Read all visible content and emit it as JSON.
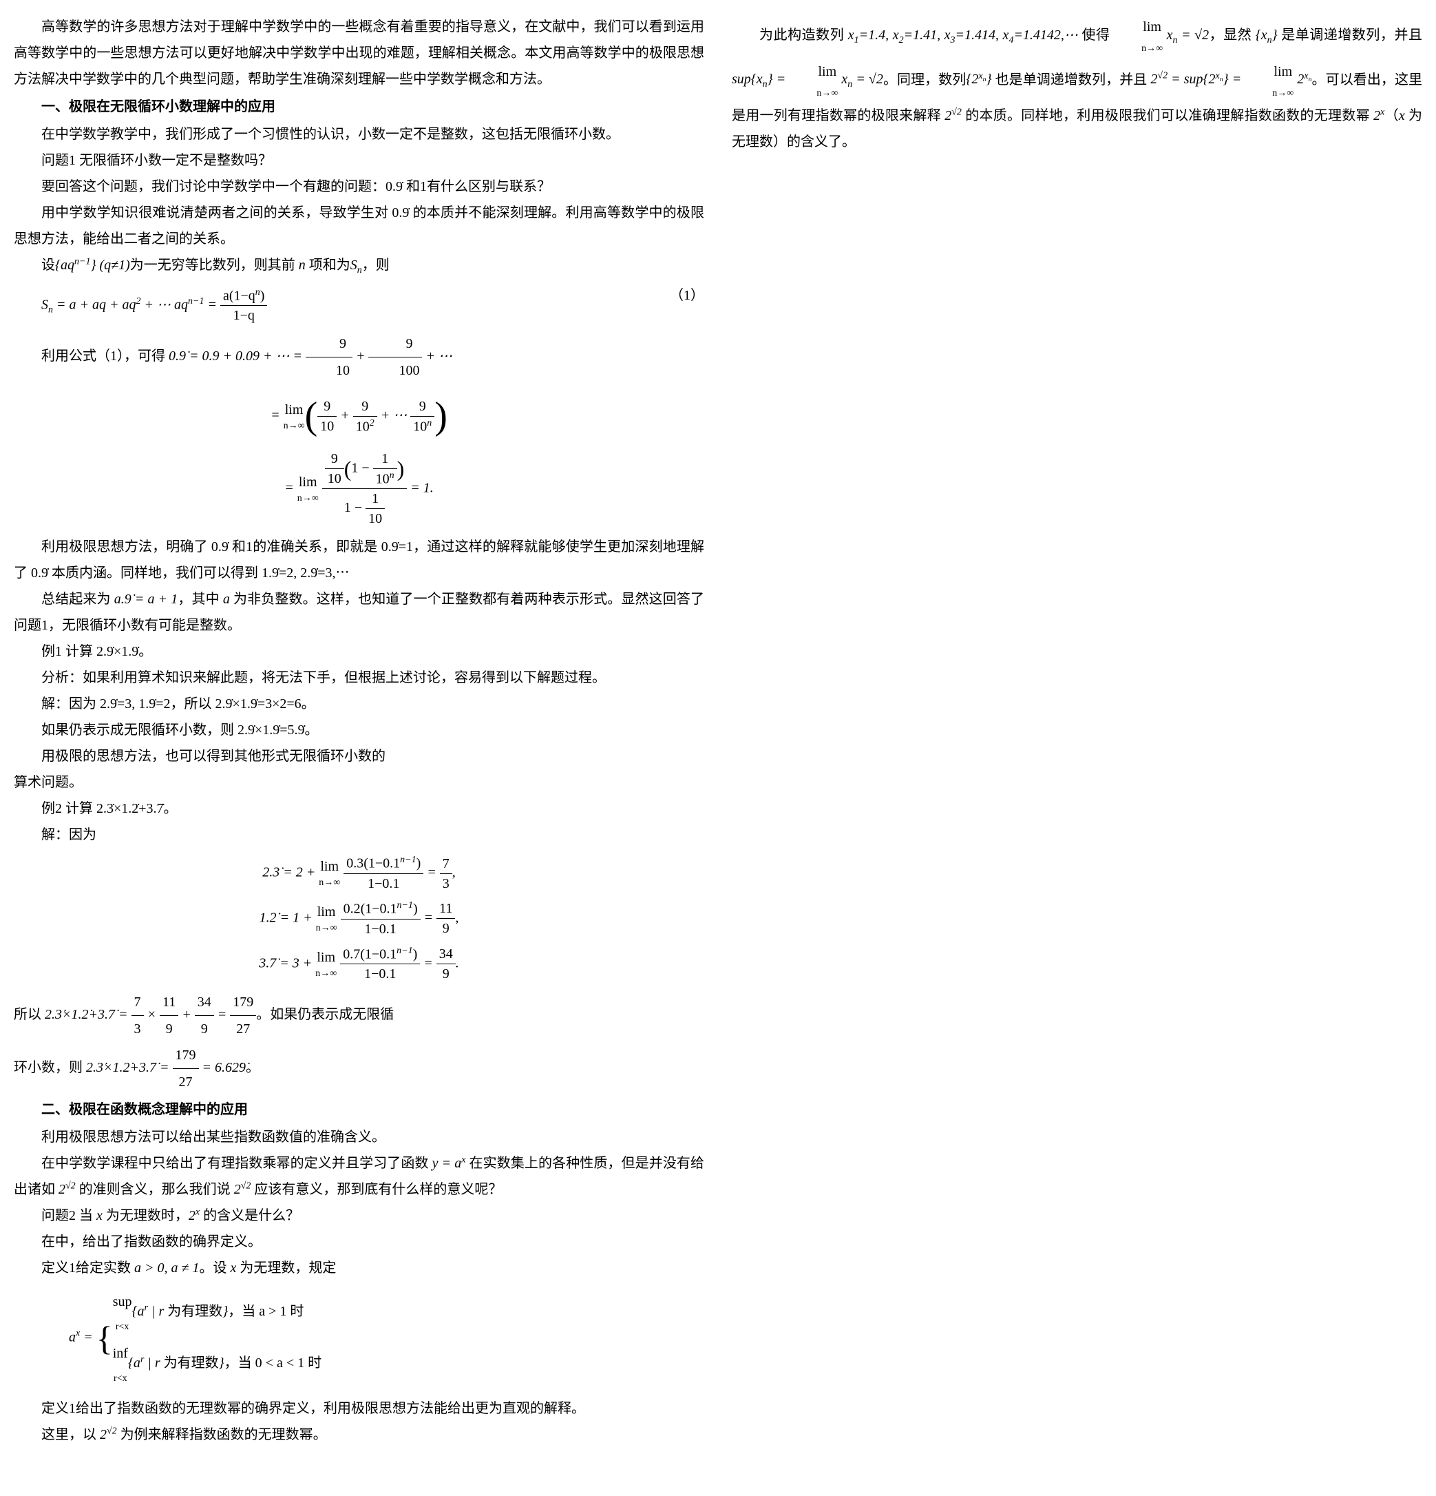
{
  "col1": {
    "p1": "高等数学的许多思想方法对于理解中学数学中的一些概念有着重要的指导意义，在文献中，我们可以看到运用高等数学中的一些思想方法可以更好地解决中学数学中出现的难题，理解相关概念。本文用高等数学中的极限思想方法解决中学数学中的几个典型问题，帮助学生准确深刻理解一些中学数学概念和方法。",
    "h1": "一、极限在无限循环小数理解中的应用",
    "p2": "在中学数学教学中，我们形成了一个习惯性的认识，小数一定不是整数，这包括无限循环小数。",
    "p3": "问题1 无限循环小数一定不是整数吗？",
    "p4": "要回答这个问题，我们讨论中学数学中一个有趣的问题：0.9̇ 和1有什么区别与联系？",
    "p5": "用中学数学知识很难说清楚两者之间的关系，导致学生对 0.9̇ 的本质并不能深刻理解。利用高等数学中的极限思想方法，能给出二者之间的关系。",
    "p6_a": "设",
    "p6_b": "为一无穷等比数列，则其前",
    "p6_c": "项和为",
    "p6_d": "，则",
    "eq1_label": "（1）",
    "p7": "利用公式（1），可得",
    "p8": "利用极限思想方法，明确了 0.9̇ 和1的准确关系，即就是 0.9̇=1，通过这样的解释就能够使学生更加深刻地理解了 0.9̇ 本质内涵。同样地，我们可以得到 1.9̇=2, 2.9̇=3,⋯",
    "p9_a": "总结起来为",
    "p9_b": "，其中",
    "p9_c": "为非负整数。这样，也知道了一个正整数都有着两种表示形式。显然这回答了问题1，无限循环小数有可能是整数。",
    "p10": "例1 计算 2.9̇×1.9̇。",
    "p11": "分析：如果利用算术知识来解此题，将无法下手，但根据上述讨论，容易得到以下解题过程。",
    "p12": "解：因为 2.9̇=3, 1.9̇=2，所以 2.9̇×1.9̇=3×2=6。",
    "p13": "如果仍表示成无限循环小数，则 2.9̇×1.9̇=5.9̇。",
    "p14": "用极限的思想方法，也可以得到其他形式无限循环小数的"
  },
  "col2": {
    "p1": "算术问题。",
    "p2": "例2 计算 2.3̇×1.2̇+3.7̇。",
    "p3": "解：因为",
    "p4_a": "所以",
    "p4_b": "。如果仍表示成无限循",
    "p5_a": "环小数，则",
    "p5_b": "。",
    "h2": "二、极限在函数概念理解中的应用",
    "p6": "利用极限思想方法可以给出某些指数函数值的准确含义。",
    "p7_a": "在中学数学课程中只给出了有理指数乘幂的定义并且学习了函数",
    "p7_b": "在实数集上的各种性质，但是并没有给出诸如",
    "p7_c": "的准则含义，那么我们说",
    "p7_d": "应该有意义，那到底有什么样的意义呢？",
    "p8_a": "问题2 当",
    "p8_b": "为无理数时，",
    "p8_c": "的含义是什么？",
    "p9": "在中，给出了指数函数的确界定义。",
    "p10_a": "定义1给定实数",
    "p10_b": "。设",
    "p10_c": "为无理数，规定",
    "case1": "为有理数",
    "case1b": "，当 a > 1 时",
    "case2": "为有理数",
    "case2b": "，当 0 < a < 1 时",
    "p11": "定义1给出了指数函数的无理数幂的确界定义，利用极限思想方法能给出更为直观的解释。",
    "p12_a": "这里，以",
    "p12_b": "为例来解释指数函数的无理数幂。",
    "p13_a": "为此构造数列",
    "p13_b": "使得",
    "p13_c": "，显然",
    "p13_d": "是单调递增数列，并且",
    "p13_e": "。同理，数列",
    "p13_f": "也是单调递增数列，并且",
    "p13_g": "。可以看出，这里是用一列有理指数幂的极限来解释",
    "p13_h": "的本质。同样地，利用极限我们可以准确理解指数函数的无理数幂",
    "p13_i": "（",
    "p13_j": "为无理数）的含义了。"
  },
  "style": {
    "font_size_body": 20,
    "font_size_heading": 20,
    "line_height": 1.9,
    "text_color": "#000000",
    "background_color": "#ffffff",
    "column_gap": 40,
    "math_font": "Times New Roman"
  }
}
